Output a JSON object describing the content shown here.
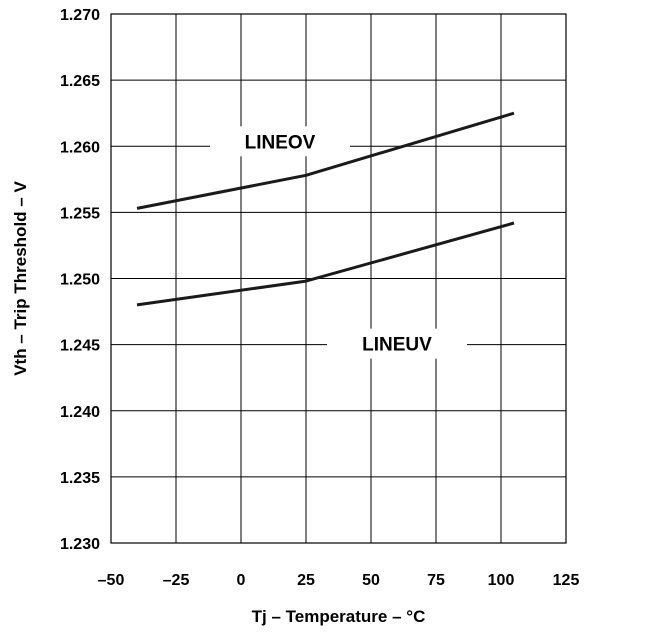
{
  "chart_data": {
    "type": "line",
    "title": "",
    "xlabel": "Tj – Temperature – °C",
    "ylabel": "Vth – Trip Threshold – V",
    "xlim": [
      -50,
      125
    ],
    "ylim": [
      1.23,
      1.27
    ],
    "x_ticks": [
      -50,
      -25,
      0,
      25,
      50,
      75,
      100,
      125
    ],
    "x_tick_labels": [
      "–50",
      "–25",
      "0",
      "25",
      "50",
      "75",
      "100",
      "125"
    ],
    "y_ticks": [
      1.23,
      1.235,
      1.24,
      1.245,
      1.25,
      1.255,
      1.26,
      1.265,
      1.27
    ],
    "y_tick_labels": [
      "1.230",
      "1.235",
      "1.240",
      "1.245",
      "1.250",
      "1.255",
      "1.260",
      "1.265",
      "1.270"
    ],
    "grid": true,
    "legend": "none",
    "series": [
      {
        "name": "LINEOV",
        "x": [
          -40,
          25,
          105
        ],
        "y": [
          1.2553,
          1.2578,
          1.2625
        ]
      },
      {
        "name": "LINEUV",
        "x": [
          -40,
          25,
          105
        ],
        "y": [
          1.248,
          1.2498,
          1.2542
        ]
      }
    ],
    "annotations": [
      {
        "text": "LINEOV",
        "x": 15,
        "y": 1.2603
      },
      {
        "text": "LINEUV",
        "x": 60,
        "y": 1.245
      }
    ],
    "line_color": "#1a1a1a"
  }
}
